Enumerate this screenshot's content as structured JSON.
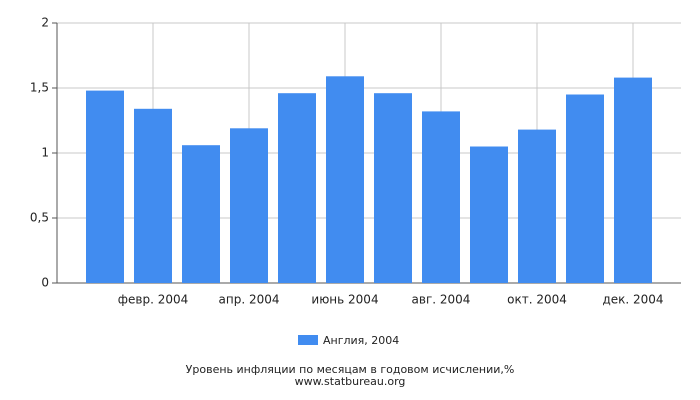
{
  "chart_data": {
    "type": "bar",
    "categories": [
      null,
      "февр. 2004",
      null,
      "апр. 2004",
      null,
      "июнь 2004",
      null,
      "авг. 2004",
      null,
      "окт. 2004",
      null,
      "дек. 2004"
    ],
    "series": [
      {
        "name": "Англия, 2004",
        "color": "#418cf0",
        "values": [
          1.48,
          1.34,
          1.06,
          1.19,
          1.46,
          1.59,
          1.46,
          1.32,
          1.05,
          1.18,
          1.45,
          1.58
        ]
      }
    ],
    "ylim": [
      0,
      2
    ],
    "yticks": [
      0,
      {
        "value": 0.5,
        "label": "0,5"
      },
      1,
      {
        "value": 1.5,
        "label": "1,5"
      },
      2
    ],
    "grid": true,
    "footer": [
      "Уровень инфляции по месяцам в годовом исчислении,%",
      "www.statbureau.org"
    ]
  }
}
